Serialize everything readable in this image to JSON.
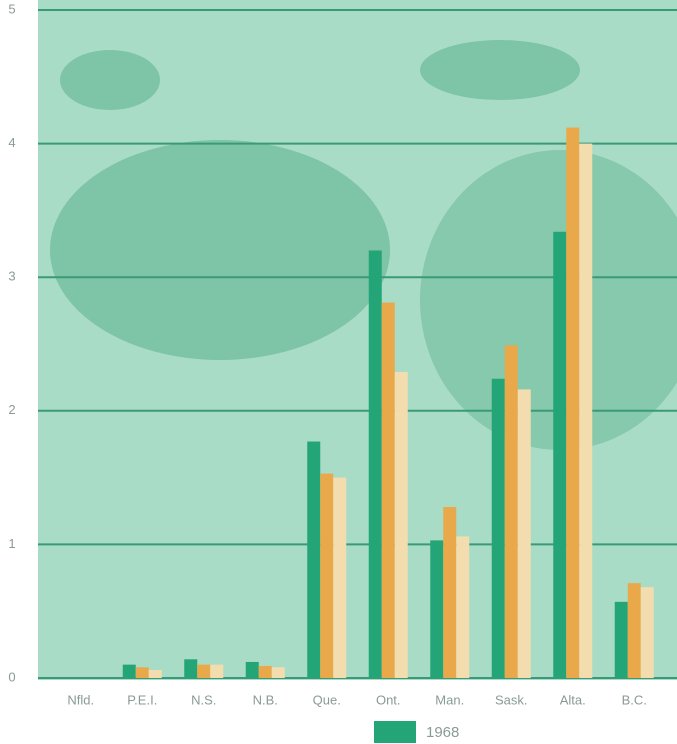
{
  "chart_data": {
    "type": "bar",
    "categories": [
      "Nfld.",
      "P.E.I.",
      "N.S.",
      "N.B.",
      "Que.",
      "Ont.",
      "Man.",
      "Sask.",
      "Alta.",
      "B.C."
    ],
    "series": [
      {
        "name": "1968",
        "color": "#23a577",
        "values": [
          0,
          0.1,
          0.14,
          0.12,
          1.77,
          3.2,
          1.03,
          2.24,
          3.34,
          0.57
        ]
      },
      {
        "color": "#e9a84a",
        "values": [
          0,
          0.08,
          0.1,
          0.09,
          1.53,
          2.81,
          1.28,
          2.49,
          4.12,
          0.71
        ]
      },
      {
        "color": "#f3dcae",
        "values": [
          0,
          0.06,
          0.1,
          0.08,
          1.5,
          2.29,
          1.06,
          2.16,
          4.0,
          0.68
        ]
      }
    ],
    "ylim": [
      0,
      5
    ],
    "yticks": [
      0,
      1,
      2,
      3,
      4,
      5
    ],
    "grid": true
  }
}
